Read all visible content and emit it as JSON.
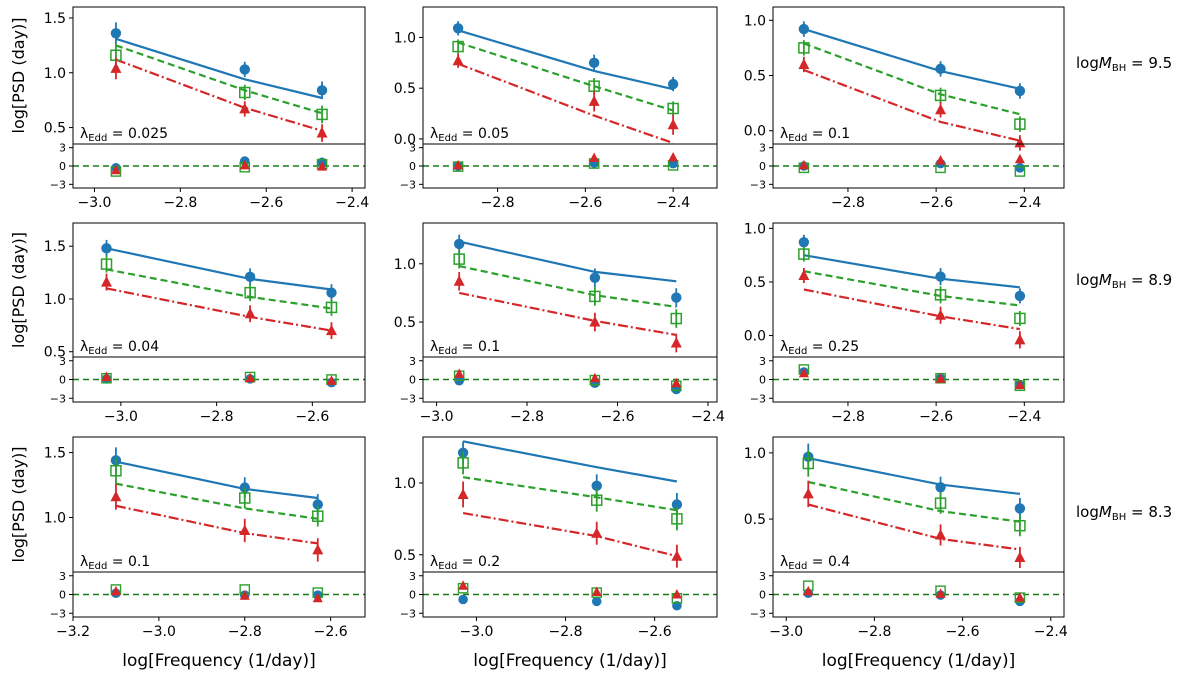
{
  "figure": {
    "ylabel": "log[PSD (day)]",
    "xlabel": "log[Frequency (1/day)]",
    "row_labels": [
      "logM_BH = 9.5",
      "logM_BH = 8.9",
      "logM_BH = 8.3"
    ],
    "row_label_parts": [
      {
        "pre": "log",
        "sym": "M",
        "sub": "BH",
        "val": " = 9.5"
      },
      {
        "pre": "log",
        "sym": "M",
        "sub": "BH",
        "val": " = 8.9"
      },
      {
        "pre": "log",
        "sym": "M",
        "sub": "BH",
        "val": " = 8.3"
      }
    ],
    "colors": {
      "blue": "#1f77b4",
      "green": "#2ca02c",
      "red": "#d62728"
    }
  },
  "chart_data": [
    {
      "type": "line",
      "panel": "r1c1",
      "lambda_label": "λEdd = 0.025",
      "lambda_value": "0.025",
      "xlim": [
        -3.05,
        -2.37
      ],
      "xticks": [
        -3.0,
        -2.8,
        -2.6,
        -2.4
      ],
      "xticklabels": [
        "−3.0",
        "−2.8",
        "−2.6",
        "−2.4"
      ],
      "ylim": [
        0.35,
        1.6
      ],
      "yticks": [
        0.5,
        1.0,
        1.5
      ],
      "yticklabels": [
        "0.5",
        "1.0",
        "1.5"
      ],
      "x": [
        -2.95,
        -2.65,
        -2.47
      ],
      "series": [
        {
          "name": "blue",
          "marker": "circle",
          "points": [
            1.36,
            1.03,
            0.84
          ],
          "err": [
            0.1,
            0.07,
            0.08
          ],
          "model": [
            1.31,
            0.94,
            0.77
          ],
          "resid": [
            -0.3,
            0.8,
            0.6
          ]
        },
        {
          "name": "green",
          "marker": "square",
          "points": [
            1.16,
            0.82,
            0.62
          ],
          "err": [
            0.1,
            0.07,
            0.08
          ],
          "model": [
            1.25,
            0.84,
            0.63
          ],
          "resid": [
            -0.9,
            -0.2,
            0.3
          ]
        },
        {
          "name": "red",
          "marker": "triangle",
          "points": [
            1.04,
            0.67,
            0.45
          ],
          "err": [
            0.1,
            0.07,
            0.08
          ],
          "model": [
            1.12,
            0.68,
            0.47
          ],
          "resid": [
            -0.7,
            0.1,
            -0.1
          ]
        }
      ],
      "resid_ylim": [
        -3.6,
        3.6
      ],
      "resid_yticks": [
        -3,
        0,
        3
      ],
      "resid_yticklabels": [
        "−3",
        "0",
        "3"
      ]
    },
    {
      "type": "line",
      "panel": "r1c2",
      "lambda_label": "λEdd = 0.05",
      "lambda_value": "0.05",
      "xlim": [
        -2.97,
        -2.3
      ],
      "xticks": [
        -2.8,
        -2.6,
        -2.4
      ],
      "xticklabels": [
        "−2.8",
        "−2.6",
        "−2.4"
      ],
      "ylim": [
        -0.05,
        1.3
      ],
      "yticks": [
        0.0,
        0.5,
        1.0
      ],
      "yticklabels": [
        "0.0",
        "0.5",
        "1.0"
      ],
      "x": [
        -2.89,
        -2.58,
        -2.4
      ],
      "series": [
        {
          "name": "blue",
          "marker": "circle",
          "points": [
            1.09,
            0.75,
            0.54
          ],
          "err": [
            0.07,
            0.08,
            0.07
          ],
          "model": [
            1.07,
            0.67,
            0.49
          ],
          "resid": [
            0.0,
            0.5,
            0.4
          ]
        },
        {
          "name": "green",
          "marker": "square",
          "points": [
            0.91,
            0.52,
            0.3
          ],
          "err": [
            0.07,
            0.08,
            0.07
          ],
          "model": [
            0.95,
            0.52,
            0.28
          ],
          "resid": [
            -0.1,
            0.4,
            0.1
          ]
        },
        {
          "name": "red",
          "marker": "triangle",
          "points": [
            0.77,
            0.37,
            0.14
          ],
          "err": [
            0.07,
            0.1,
            0.1
          ],
          "model": [
            0.74,
            0.23,
            -0.04
          ],
          "resid": [
            0.1,
            1.3,
            1.4
          ]
        }
      ],
      "resid_ylim": [
        -3.6,
        3.6
      ],
      "resid_yticks": [
        -3,
        0,
        3
      ],
      "resid_yticklabels": [
        "−3",
        "0",
        "3"
      ]
    },
    {
      "type": "line",
      "panel": "r1c3",
      "lambda_label": "λEdd = 0.1",
      "lambda_value": "0.1",
      "xlim": [
        -2.97,
        -2.31
      ],
      "xticks": [
        -2.8,
        -2.6,
        -2.4
      ],
      "xticklabels": [
        "−2.8",
        "−2.6",
        "−2.4"
      ],
      "ylim": [
        -0.12,
        1.12
      ],
      "yticks": [
        0.0,
        0.5,
        1.0
      ],
      "yticklabels": [
        "0.0",
        "0.5",
        "1.0"
      ],
      "x": [
        -2.9,
        -2.59,
        -2.41
      ],
      "series": [
        {
          "name": "blue",
          "marker": "circle",
          "points": [
            0.92,
            0.56,
            0.36
          ],
          "err": [
            0.07,
            0.07,
            0.07
          ],
          "model": [
            0.92,
            0.54,
            0.38
          ],
          "resid": [
            0.0,
            0.4,
            -0.3
          ]
        },
        {
          "name": "green",
          "marker": "square",
          "points": [
            0.75,
            0.32,
            0.06
          ],
          "err": [
            0.07,
            0.07,
            0.07
          ],
          "model": [
            0.79,
            0.33,
            0.15
          ],
          "resid": [
            -0.3,
            -0.3,
            -0.9
          ]
        },
        {
          "name": "red",
          "marker": "triangle",
          "points": [
            0.6,
            0.19,
            -0.11
          ],
          "err": [
            0.07,
            0.07,
            0.07
          ],
          "model": [
            0.55,
            0.08,
            -0.09
          ],
          "resid": [
            0.1,
            0.9,
            1.1
          ]
        }
      ],
      "resid_ylim": [
        -3.6,
        3.6
      ],
      "resid_yticks": [
        -3,
        0,
        3
      ],
      "resid_yticklabels": [
        "−3",
        "0",
        "3"
      ]
    },
    {
      "type": "line",
      "panel": "r2c1",
      "lambda_label": "λEdd = 0.04",
      "lambda_value": "0.04",
      "xlim": [
        -3.1,
        -2.49
      ],
      "xticks": [
        -3.0,
        -2.8,
        -2.6
      ],
      "xticklabels": [
        "−3.0",
        "−2.8",
        "−2.6"
      ],
      "ylim": [
        0.45,
        1.72
      ],
      "yticks": [
        0.5,
        1.0,
        1.5
      ],
      "yticklabels": [
        "0.5",
        "1.0",
        "1.5"
      ],
      "x": [
        -3.03,
        -2.73,
        -2.56
      ],
      "series": [
        {
          "name": "blue",
          "marker": "circle",
          "points": [
            1.48,
            1.21,
            1.06
          ],
          "err": [
            0.08,
            0.08,
            0.08
          ],
          "model": [
            1.48,
            1.19,
            1.09
          ],
          "resid": [
            0.1,
            0.1,
            -0.5
          ]
        },
        {
          "name": "green",
          "marker": "square",
          "points": [
            1.33,
            1.06,
            0.92
          ],
          "err": [
            0.08,
            0.08,
            0.08
          ],
          "model": [
            1.28,
            1.02,
            0.91
          ],
          "resid": [
            0.2,
            0.4,
            0.0
          ]
        },
        {
          "name": "red",
          "marker": "triangle",
          "points": [
            1.16,
            0.86,
            0.7
          ],
          "err": [
            0.08,
            0.08,
            0.08
          ],
          "model": [
            1.1,
            0.83,
            0.7
          ],
          "resid": [
            0.4,
            0.2,
            -0.2
          ]
        }
      ],
      "resid_ylim": [
        -3.6,
        3.6
      ],
      "resid_yticks": [
        -3,
        0,
        3
      ],
      "resid_yticklabels": [
        "−3",
        "0",
        "3"
      ]
    },
    {
      "type": "line",
      "panel": "r2c2",
      "lambda_label": "λEdd = 0.1",
      "lambda_value": "0.1",
      "xlim": [
        -3.03,
        -2.38
      ],
      "xticks": [
        -3.0,
        -2.8,
        -2.6,
        -2.4
      ],
      "xticklabels": [
        "−3.0",
        "−2.8",
        "−2.6",
        "−2.4"
      ],
      "ylim": [
        0.2,
        1.35
      ],
      "yticks": [
        0.5,
        1.0
      ],
      "yticklabels": [
        "0.5",
        "1.0"
      ],
      "x": [
        -2.95,
        -2.65,
        -2.47
      ],
      "series": [
        {
          "name": "blue",
          "marker": "circle",
          "points": [
            1.17,
            0.88,
            0.71
          ],
          "err": [
            0.08,
            0.08,
            0.08
          ],
          "model": [
            1.19,
            0.93,
            0.85
          ],
          "resid": [
            -0.2,
            -0.6,
            -1.6
          ]
        },
        {
          "name": "green",
          "marker": "square",
          "points": [
            1.04,
            0.72,
            0.53
          ],
          "err": [
            0.08,
            0.08,
            0.08
          ],
          "model": [
            0.98,
            0.73,
            0.63
          ],
          "resid": [
            0.6,
            -0.1,
            -1.0
          ]
        },
        {
          "name": "red",
          "marker": "triangle",
          "points": [
            0.85,
            0.5,
            0.32
          ],
          "err": [
            0.08,
            0.08,
            0.08
          ],
          "model": [
            0.75,
            0.51,
            0.39
          ],
          "resid": [
            0.9,
            0.2,
            -0.6
          ]
        }
      ],
      "resid_ylim": [
        -3.6,
        3.6
      ],
      "resid_yticks": [
        -3,
        0,
        3
      ],
      "resid_yticklabels": [
        "−3",
        "0",
        "3"
      ]
    },
    {
      "type": "line",
      "panel": "r3c3_",
      "lambda_label": "λEdd = 0.25",
      "lambda_value": "0.25",
      "xlim": [
        -2.97,
        -2.31
      ],
      "xticks": [
        -2.8,
        -2.6,
        -2.4
      ],
      "xticklabels": [
        "−2.8",
        "−2.6",
        "−2.4"
      ],
      "ylim": [
        -0.2,
        1.05
      ],
      "yticks": [
        0.0,
        0.5,
        1.0
      ],
      "yticklabels": [
        "0.0",
        "0.5",
        "1.0"
      ],
      "x": [
        -2.9,
        -2.59,
        -2.41
      ],
      "series": [
        {
          "name": "blue",
          "marker": "circle",
          "points": [
            0.87,
            0.55,
            0.37
          ],
          "err": [
            0.07,
            0.08,
            0.07
          ],
          "model": [
            0.75,
            0.53,
            0.45
          ],
          "resid": [
            1.2,
            0.2,
            -0.8
          ]
        },
        {
          "name": "green",
          "marker": "square",
          "points": [
            0.76,
            0.38,
            0.16
          ],
          "err": [
            0.07,
            0.08,
            0.07
          ],
          "model": [
            0.6,
            0.37,
            0.28
          ],
          "resid": [
            1.6,
            0.2,
            -1.0
          ]
        },
        {
          "name": "red",
          "marker": "triangle",
          "points": [
            0.56,
            0.19,
            -0.04
          ],
          "err": [
            0.07,
            0.08,
            0.08
          ],
          "model": [
            0.43,
            0.18,
            0.06
          ],
          "resid": [
            1.0,
            0.1,
            -0.9
          ]
        }
      ],
      "resid_ylim": [
        -3.6,
        3.6
      ],
      "resid_yticks": [
        -3,
        0,
        3
      ],
      "resid_yticklabels": [
        "−3",
        "0",
        "3"
      ]
    },
    {
      "type": "line",
      "panel": "r3c1",
      "lambda_label": "λEdd = 0.1",
      "lambda_value": "0.1",
      "xlim": [
        -3.2,
        -2.52
      ],
      "xticks": [
        -3.2,
        -3.0,
        -2.8,
        -2.6
      ],
      "xticklabels": [
        "−3.2",
        "−3.0",
        "−2.8",
        "−2.6"
      ],
      "ylim": [
        0.58,
        1.62
      ],
      "yticks": [
        1.0,
        1.5
      ],
      "yticklabels": [
        "1.0",
        "1.5"
      ],
      "x": [
        -3.1,
        -2.8,
        -2.63
      ],
      "series": [
        {
          "name": "blue",
          "marker": "circle",
          "points": [
            1.44,
            1.23,
            1.1
          ],
          "err": [
            0.1,
            0.08,
            0.08
          ],
          "model": [
            1.43,
            1.22,
            1.15
          ],
          "resid": [
            0.2,
            -0.1,
            -0.1
          ]
        },
        {
          "name": "green",
          "marker": "square",
          "points": [
            1.36,
            1.15,
            1.01
          ],
          "err": [
            0.1,
            0.08,
            0.08
          ],
          "model": [
            1.26,
            1.07,
            0.99
          ],
          "resid": [
            0.8,
            0.8,
            0.3
          ]
        },
        {
          "name": "red",
          "marker": "triangle",
          "points": [
            1.16,
            0.9,
            0.75
          ],
          "err": [
            0.1,
            0.09,
            0.09
          ],
          "model": [
            1.09,
            0.88,
            0.8
          ],
          "resid": [
            0.5,
            -0.2,
            -0.6
          ]
        }
      ],
      "resid_ylim": [
        -3.6,
        3.6
      ],
      "resid_yticks": [
        -3,
        0,
        3
      ],
      "resid_yticklabels": [
        "−3",
        "0",
        "3"
      ]
    },
    {
      "type": "line",
      "panel": "r3c2",
      "lambda_label": "λEdd = 0.2",
      "lambda_value": "0.2",
      "xlim": [
        -3.12,
        -2.46
      ],
      "xticks": [
        -3.0,
        -2.8,
        -2.6
      ],
      "xticklabels": [
        "−3.0",
        "−2.8",
        "−2.6"
      ],
      "ylim": [
        0.38,
        1.32
      ],
      "yticks": [
        0.5,
        1.0
      ],
      "yticklabels": [
        "0.5",
        "1.0"
      ],
      "x": [
        -3.03,
        -2.73,
        -2.55
      ],
      "series": [
        {
          "name": "blue",
          "marker": "circle",
          "points": [
            1.21,
            0.98,
            0.85
          ],
          "err": [
            0.08,
            0.08,
            0.08
          ],
          "model": [
            1.29,
            1.11,
            1.01
          ],
          "resid": [
            -0.8,
            -1.1,
            -1.8
          ]
        },
        {
          "name": "green",
          "marker": "square",
          "points": [
            1.14,
            0.88,
            0.75
          ],
          "err": [
            0.08,
            0.08,
            0.08
          ],
          "model": [
            1.04,
            0.9,
            0.81
          ],
          "resid": [
            1.0,
            0.3,
            -0.6
          ]
        },
        {
          "name": "red",
          "marker": "triangle",
          "points": [
            0.92,
            0.65,
            0.49
          ],
          "err": [
            0.09,
            0.08,
            0.08
          ],
          "model": [
            0.79,
            0.63,
            0.49
          ],
          "resid": [
            1.4,
            0.4,
            0.0
          ]
        }
      ],
      "resid_ylim": [
        -3.6,
        3.6
      ],
      "resid_yticks": [
        -3,
        0,
        3
      ],
      "resid_yticklabels": [
        "−3",
        "0",
        "3"
      ]
    },
    {
      "type": "line",
      "panel": "r3c3",
      "lambda_label": "λEdd = 0.4",
      "lambda_value": "0.4",
      "xlim": [
        -3.03,
        -2.37
      ],
      "xticks": [
        -3.0,
        -2.8,
        -2.6,
        -2.4
      ],
      "xticklabels": [
        "−3.0",
        "−2.8",
        "−2.6",
        "−2.4"
      ],
      "ylim": [
        0.1,
        1.12
      ],
      "yticks": [
        0.5,
        1.0
      ],
      "yticklabels": [
        "0.5",
        "1.0"
      ],
      "x": [
        -2.95,
        -2.65,
        -2.47
      ],
      "series": [
        {
          "name": "blue",
          "marker": "circle",
          "points": [
            0.97,
            0.74,
            0.58
          ],
          "err": [
            0.1,
            0.08,
            0.08
          ],
          "model": [
            0.96,
            0.76,
            0.69
          ],
          "resid": [
            0.2,
            -0.1,
            -1.1
          ]
        },
        {
          "name": "green",
          "marker": "square",
          "points": [
            0.92,
            0.62,
            0.45
          ],
          "err": [
            0.1,
            0.08,
            0.08
          ],
          "model": [
            0.78,
            0.56,
            0.48
          ],
          "resid": [
            1.4,
            0.6,
            -0.5
          ]
        },
        {
          "name": "red",
          "marker": "triangle",
          "points": [
            0.69,
            0.38,
            0.21
          ],
          "err": [
            0.1,
            0.08,
            0.08
          ],
          "model": [
            0.61,
            0.35,
            0.27
          ],
          "resid": [
            0.5,
            0.1,
            -0.5
          ]
        }
      ],
      "resid_ylim": [
        -3.6,
        3.6
      ],
      "resid_yticks": [
        -3,
        0,
        3
      ],
      "resid_yticklabels": [
        "−3",
        "0",
        "3"
      ]
    }
  ]
}
